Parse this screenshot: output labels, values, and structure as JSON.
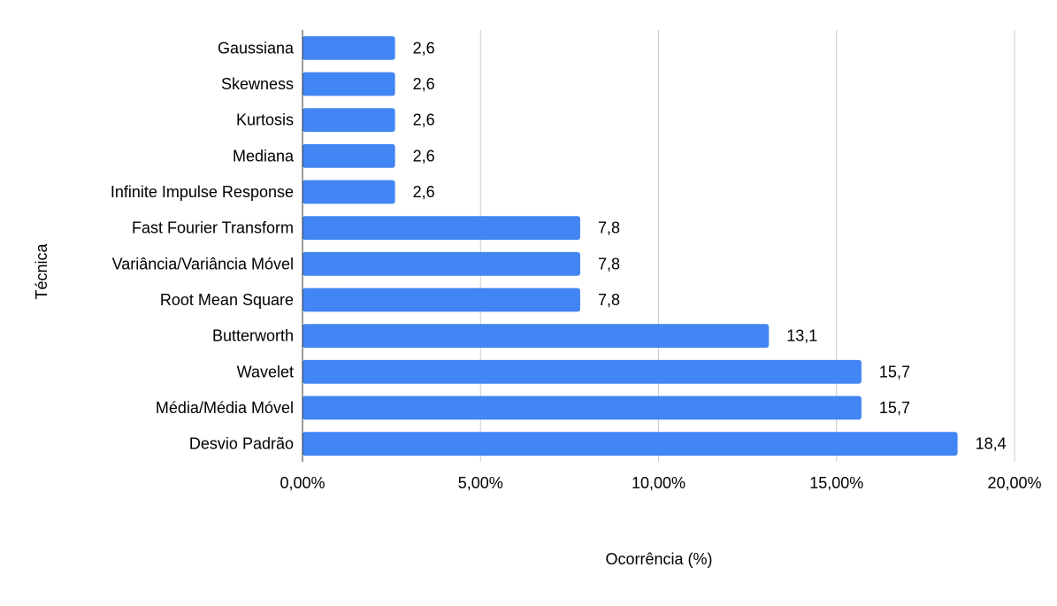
{
  "chart_data": {
    "type": "bar",
    "orientation": "horizontal",
    "title": "",
    "xlabel": "Ocorrência (%)",
    "ylabel": "Técnica",
    "xlim": [
      0,
      20
    ],
    "xticks": [
      0,
      5,
      10,
      15,
      20
    ],
    "xtick_labels": [
      "0,00%",
      "5,00%",
      "10,00%",
      "15,00%",
      "20,00%"
    ],
    "grid": true,
    "bar_color": "#4285F4",
    "categories": [
      "Gaussiana",
      "Skewness",
      "Kurtosis",
      "Mediana",
      "Infinite Impulse Response",
      "Fast Fourier Transform",
      "Variância/Variância Móvel",
      "Root Mean Square",
      "Butterworth",
      "Wavelet",
      "Média/Média Móvel",
      "Desvio Padrão"
    ],
    "values": [
      2.6,
      2.6,
      2.6,
      2.6,
      2.6,
      7.8,
      7.8,
      7.8,
      13.1,
      15.7,
      15.7,
      18.4
    ],
    "data_labels": [
      "2,6",
      "2,6",
      "2,6",
      "2,6",
      "2,6",
      "7,8",
      "7,8",
      "7,8",
      "13,1",
      "15,7",
      "15,7",
      "18,4"
    ]
  }
}
